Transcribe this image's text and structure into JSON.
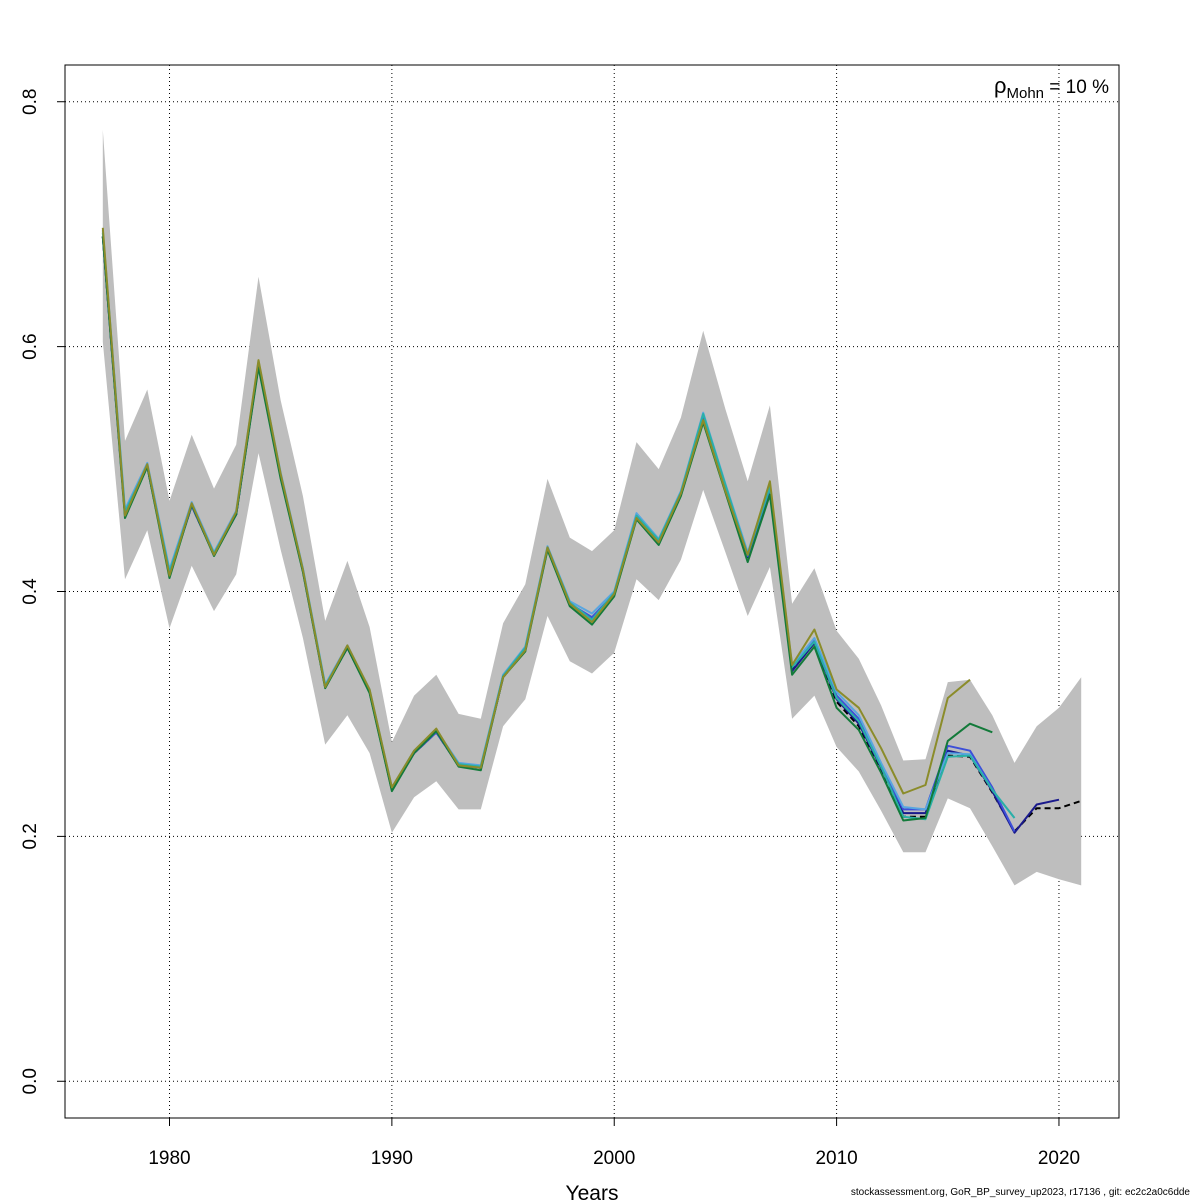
{
  "chart_data": {
    "type": "line",
    "title": "",
    "xlabel": "Years",
    "ylabel": "",
    "xlim": [
      1975.3,
      2022.7
    ],
    "ylim": [
      -0.03,
      0.83
    ],
    "x_ticks": [
      1980,
      1990,
      2000,
      2010,
      2020
    ],
    "y_ticks": [
      0.0,
      0.2,
      0.4,
      0.6,
      0.8
    ],
    "x_tick_labels": [
      "1980",
      "1990",
      "2000",
      "2010",
      "2020"
    ],
    "y_tick_labels": [
      "0.0",
      "0.2",
      "0.4",
      "0.6",
      "0.8"
    ],
    "grid": true,
    "annotation": {
      "rho": "ρ",
      "sub": "Mohn",
      "rest": " = 10 %"
    },
    "band": {
      "x": [
        1977,
        1978,
        1979,
        1980,
        1981,
        1982,
        1983,
        1984,
        1985,
        1986,
        1987,
        1988,
        1989,
        1990,
        1991,
        1992,
        1993,
        1994,
        1995,
        1996,
        1997,
        1998,
        1999,
        2000,
        2001,
        2002,
        2003,
        2004,
        2005,
        2006,
        2007,
        2008,
        2009,
        2010,
        2011,
        2012,
        2013,
        2014,
        2015,
        2016,
        2017,
        2018,
        2019,
        2020,
        2021
      ],
      "upper": [
        0.777,
        0.523,
        0.565,
        0.474,
        0.528,
        0.484,
        0.52,
        0.657,
        0.556,
        0.478,
        0.376,
        0.425,
        0.371,
        0.277,
        0.315,
        0.332,
        0.3,
        0.296,
        0.374,
        0.406,
        0.492,
        0.444,
        0.433,
        0.45,
        0.522,
        0.5,
        0.542,
        0.613,
        0.549,
        0.49,
        0.552,
        0.39,
        0.419,
        0.368,
        0.345,
        0.307,
        0.262,
        0.263,
        0.326,
        0.328,
        0.299,
        0.26,
        0.29,
        0.305,
        0.33
      ],
      "lower": [
        0.604,
        0.41,
        0.45,
        0.37,
        0.421,
        0.384,
        0.414,
        0.513,
        0.434,
        0.362,
        0.275,
        0.299,
        0.268,
        0.203,
        0.232,
        0.245,
        0.222,
        0.222,
        0.29,
        0.312,
        0.38,
        0.343,
        0.333,
        0.35,
        0.41,
        0.393,
        0.426,
        0.483,
        0.432,
        0.38,
        0.42,
        0.296,
        0.315,
        0.273,
        0.253,
        0.221,
        0.187,
        0.187,
        0.231,
        0.223,
        0.192,
        0.16,
        0.171,
        0.165,
        0.16
      ]
    },
    "series": [
      {
        "color": "#000000",
        "dashed": true,
        "x": [
          1977,
          1978,
          1979,
          1980,
          1981,
          1982,
          1983,
          1984,
          1985,
          1986,
          1987,
          1988,
          1989,
          1990,
          1991,
          1992,
          1993,
          1994,
          1995,
          1996,
          1997,
          1998,
          1999,
          2000,
          2001,
          2002,
          2003,
          2004,
          2005,
          2006,
          2007,
          2008,
          2009,
          2010,
          2011,
          2012,
          2013,
          2014,
          2015,
          2016,
          2017,
          2018,
          2019,
          2020,
          2021
        ],
        "y": [
          0.69,
          0.463,
          0.502,
          0.414,
          0.47,
          0.43,
          0.463,
          0.585,
          0.494,
          0.417,
          0.322,
          0.354,
          0.318,
          0.238,
          0.268,
          0.285,
          0.258,
          0.256,
          0.33,
          0.353,
          0.435,
          0.39,
          0.378,
          0.398,
          0.46,
          0.44,
          0.48,
          0.543,
          0.485,
          0.428,
          0.483,
          0.336,
          0.358,
          0.31,
          0.29,
          0.254,
          0.216,
          0.216,
          0.266,
          0.265,
          0.236,
          0.204,
          0.223,
          0.223,
          0.229
        ]
      },
      {
        "color": "#1a1a8c",
        "dashed": false,
        "x": [
          1977,
          1978,
          1979,
          1980,
          1981,
          1982,
          1983,
          1984,
          1985,
          1986,
          1987,
          1988,
          1989,
          1990,
          1991,
          1992,
          1993,
          1994,
          1995,
          1996,
          1997,
          1998,
          1999,
          2000,
          2001,
          2002,
          2003,
          2004,
          2005,
          2006,
          2007,
          2008,
          2009,
          2010,
          2011,
          2012,
          2013,
          2014,
          2015,
          2016,
          2017,
          2018,
          2019,
          2020
        ],
        "y": [
          0.69,
          0.463,
          0.502,
          0.414,
          0.47,
          0.43,
          0.463,
          0.585,
          0.494,
          0.417,
          0.322,
          0.354,
          0.318,
          0.238,
          0.268,
          0.285,
          0.258,
          0.256,
          0.33,
          0.353,
          0.435,
          0.39,
          0.378,
          0.398,
          0.46,
          0.44,
          0.48,
          0.543,
          0.485,
          0.428,
          0.483,
          0.335,
          0.358,
          0.312,
          0.292,
          0.256,
          0.219,
          0.219,
          0.27,
          0.266,
          0.237,
          0.203,
          0.226,
          0.23
        ]
      },
      {
        "color": "#3d4fd8",
        "dashed": false,
        "x": [
          1977,
          1978,
          1979,
          1980,
          1981,
          1982,
          1983,
          1984,
          1985,
          1986,
          1987,
          1988,
          1989,
          1990,
          1991,
          1992,
          1993,
          1994,
          1995,
          1996,
          1997,
          1998,
          1999,
          2000,
          2001,
          2002,
          2003,
          2004,
          2005,
          2006,
          2007,
          2008,
          2009,
          2010,
          2011,
          2012,
          2013,
          2014,
          2015,
          2016,
          2017,
          2018
        ],
        "y": [
          0.69,
          0.463,
          0.502,
          0.414,
          0.47,
          0.43,
          0.463,
          0.585,
          0.494,
          0.417,
          0.322,
          0.354,
          0.318,
          0.238,
          0.268,
          0.285,
          0.258,
          0.256,
          0.33,
          0.353,
          0.435,
          0.39,
          0.379,
          0.398,
          0.461,
          0.441,
          0.48,
          0.544,
          0.486,
          0.429,
          0.484,
          0.338,
          0.36,
          0.315,
          0.296,
          0.258,
          0.222,
          0.222,
          0.274,
          0.27,
          0.24,
          0.204
        ]
      },
      {
        "color": "#58a6e0",
        "dashed": false,
        "x": [
          1977,
          1978,
          1979,
          1980,
          1981,
          1982,
          1983,
          1984,
          1985,
          1986,
          1987,
          1988,
          1989,
          1990,
          1991,
          1992,
          1993,
          1994,
          1995,
          1996,
          1997,
          1998,
          1999,
          2000,
          2001,
          2002,
          2003,
          2004,
          2005,
          2006,
          2007,
          2008,
          2009,
          2010,
          2011,
          2012,
          2013,
          2014,
          2015,
          2016,
          2017,
          2018
        ],
        "y": [
          0.695,
          0.467,
          0.505,
          0.418,
          0.473,
          0.432,
          0.466,
          0.588,
          0.497,
          0.419,
          0.324,
          0.356,
          0.32,
          0.24,
          0.27,
          0.287,
          0.26,
          0.258,
          0.332,
          0.355,
          0.437,
          0.392,
          0.382,
          0.4,
          0.464,
          0.443,
          0.482,
          0.546,
          0.488,
          0.432,
          0.486,
          0.34,
          0.362,
          0.318,
          0.299,
          0.26,
          0.224,
          0.222,
          0.268,
          0.267,
          0.238,
          0.215
        ]
      },
      {
        "color": "#2ab0a6",
        "dashed": false,
        "x": [
          1977,
          1978,
          1979,
          1980,
          1981,
          1982,
          1983,
          1984,
          1985,
          1986,
          1987,
          1988,
          1989,
          1990,
          1991,
          1992,
          1993,
          1994,
          1995,
          1996,
          1997,
          1998,
          1999,
          2000,
          2001,
          2002,
          2003,
          2004,
          2005,
          2006,
          2007,
          2008,
          2009,
          2010,
          2011,
          2012,
          2013,
          2014,
          2015,
          2016,
          2017,
          2018
        ],
        "y": [
          0.693,
          0.465,
          0.503,
          0.416,
          0.471,
          0.431,
          0.464,
          0.586,
          0.495,
          0.418,
          0.323,
          0.355,
          0.319,
          0.239,
          0.269,
          0.286,
          0.259,
          0.257,
          0.331,
          0.354,
          0.436,
          0.391,
          0.377,
          0.399,
          0.462,
          0.442,
          0.481,
          0.545,
          0.487,
          0.43,
          0.485,
          0.338,
          0.359,
          0.313,
          0.294,
          0.257,
          0.216,
          0.214,
          0.265,
          0.266,
          0.238,
          0.215
        ]
      },
      {
        "color": "#137a3a",
        "dashed": false,
        "x": [
          1977,
          1978,
          1979,
          1980,
          1981,
          1982,
          1983,
          1984,
          1985,
          1986,
          1987,
          1988,
          1989,
          1990,
          1991,
          1992,
          1993,
          1994,
          1995,
          1996,
          1997,
          1998,
          1999,
          2000,
          2001,
          2002,
          2003,
          2004,
          2005,
          2006,
          2007,
          2008,
          2009,
          2010,
          2011,
          2012,
          2013,
          2014,
          2015,
          2016,
          2017
        ],
        "y": [
          0.69,
          0.46,
          0.502,
          0.411,
          0.471,
          0.429,
          0.463,
          0.583,
          0.492,
          0.416,
          0.321,
          0.354,
          0.317,
          0.237,
          0.268,
          0.286,
          0.257,
          0.254,
          0.33,
          0.351,
          0.434,
          0.388,
          0.373,
          0.396,
          0.459,
          0.438,
          0.478,
          0.538,
          0.481,
          0.424,
          0.479,
          0.332,
          0.355,
          0.305,
          0.287,
          0.252,
          0.213,
          0.215,
          0.278,
          0.292,
          0.285
        ]
      },
      {
        "color": "#8b8c2a",
        "dashed": false,
        "x": [
          1977,
          1978,
          1979,
          1980,
          1981,
          1982,
          1983,
          1984,
          1985,
          1986,
          1987,
          1988,
          1989,
          1990,
          1991,
          1992,
          1993,
          1994,
          1995,
          1996,
          1997,
          1998,
          1999,
          2000,
          2001,
          2002,
          2003,
          2004,
          2005,
          2006,
          2007,
          2008,
          2009,
          2010,
          2011,
          2012,
          2013,
          2014,
          2015,
          2016
        ],
        "y": [
          0.697,
          0.462,
          0.504,
          0.413,
          0.472,
          0.43,
          0.465,
          0.589,
          0.496,
          0.418,
          0.322,
          0.356,
          0.32,
          0.24,
          0.27,
          0.288,
          0.258,
          0.256,
          0.33,
          0.352,
          0.436,
          0.39,
          0.375,
          0.398,
          0.46,
          0.44,
          0.48,
          0.54,
          0.482,
          0.43,
          0.49,
          0.34,
          0.369,
          0.32,
          0.305,
          0.272,
          0.235,
          0.242,
          0.313,
          0.328
        ]
      }
    ]
  },
  "footer": "stockassessment.org, GoR_BP_survey_up2023, r17136 , git: ec2c2a0c6dde"
}
